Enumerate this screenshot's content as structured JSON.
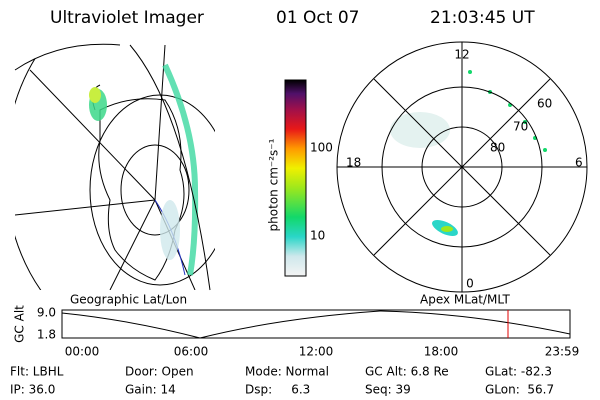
{
  "header": {
    "title": "Ultraviolet Imager",
    "date": "01 Oct 07",
    "time": "21:03:45 UT"
  },
  "colorbar": {
    "label": "photon cm⁻²s⁻¹",
    "ticks": [
      "100",
      "10"
    ]
  },
  "map_labels": {
    "left": "Geographic Lat/Lon",
    "right": "Apex MLat/MLT"
  },
  "polar_labels": {
    "top": "12",
    "bottom": "0",
    "left": "18",
    "right": "6",
    "lat60": "60",
    "lat70": "70",
    "lat80": "80"
  },
  "orbit_plot": {
    "ylabel": "GC Alt",
    "ymax": "9.0",
    "ymin": "1.8",
    "times": [
      "00:00",
      "06:00",
      "12:00",
      "18:00",
      "23:59"
    ]
  },
  "info": {
    "row1": [
      "Flt: LBHL",
      "Door: Open",
      "Mode: Normal",
      "GC Alt: 6.8 Re",
      "GLat: -82.3"
    ],
    "row2": [
      "IP: 36.0",
      "Gain: 14",
      "Dsp:     6.3",
      "Seq: 39",
      "GLon:  56.7"
    ]
  }
}
